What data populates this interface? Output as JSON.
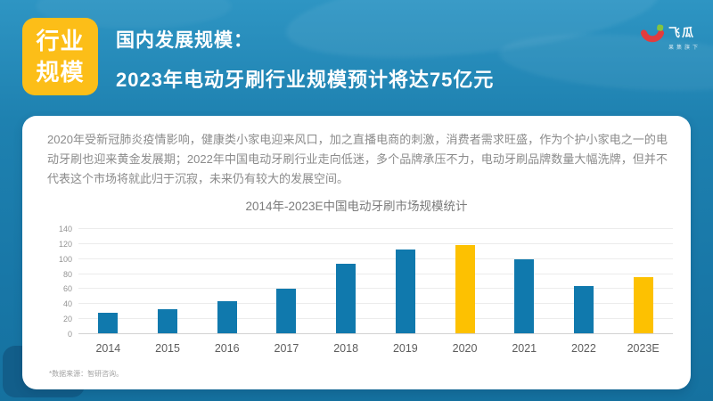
{
  "slide": {
    "badge": {
      "line1": "行业",
      "line2": "规模"
    },
    "title_line1": "国内发展规模：",
    "title_line2": "2023年电动牙刷行业规模预计将达75亿元",
    "logo": {
      "name": "飞瓜",
      "tagline": "果集旗下"
    },
    "footnote": "*数据来源：智研咨询。"
  },
  "card": {
    "paragraph": "2020年受新冠肺炎疫情影响，健康类小家电迎来风口，加之直播电商的刺激，消费者需求旺盛，作为个护小家电之一的电动牙刷也迎来黄金发展期；2022年中国电动牙刷行业走向低迷，多个品牌承压不力，电动牙刷品牌数量大幅洗牌，但并不代表这个市场将就此归于沉寂，未来仍有较大的发展空间。"
  },
  "chart_data": {
    "type": "bar",
    "title": "2014年-2023E中国电动牙刷市场规模统计",
    "categories": [
      "2014",
      "2015",
      "2016",
      "2017",
      "2018",
      "2019",
      "2020",
      "2021",
      "2022",
      "2023E"
    ],
    "values": [
      27,
      32,
      43,
      59,
      92,
      112,
      117,
      98,
      63,
      75
    ],
    "highlight_indexes": [
      6,
      9
    ],
    "xlabel": "",
    "ylabel": "",
    "ylim": [
      0,
      140
    ],
    "ytick_interval": 20,
    "grid": true,
    "legend": "none",
    "bar_color": "#1079ad",
    "highlight_color": "#fdc101"
  },
  "theme": {
    "background_blue": "#1877a7",
    "badge_yellow": "#fcbe18",
    "logo_red": "#e23b3e",
    "logo_green": "#83c341"
  }
}
